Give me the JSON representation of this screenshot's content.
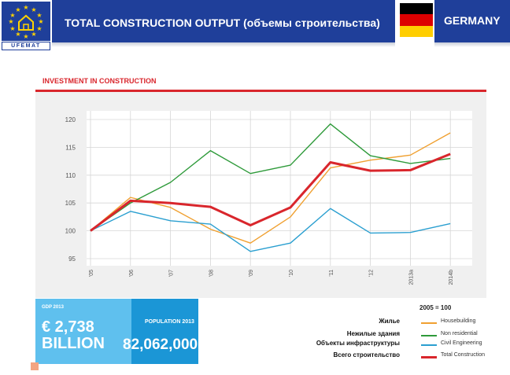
{
  "header": {
    "org_label": "UFEMAT",
    "title": "TOTAL CONSTRUCTION OUTPUT (объемы строительства)",
    "country": "GERMANY"
  },
  "colors": {
    "brand_blue": "#1f3f9a",
    "accent_red": "#d9262c",
    "de_black": "#000000",
    "de_red": "#dd0000",
    "de_gold": "#ffce00"
  },
  "section": {
    "title": "INVESTMENT IN CONSTRUCTION"
  },
  "chart_data": {
    "type": "line",
    "x": [
      "'05",
      "'06",
      "'07",
      "'08",
      "'09",
      "'10",
      "'11",
      "'12",
      "2013a",
      "2014b"
    ],
    "ylim": [
      95,
      120
    ],
    "yticks": [
      95,
      100,
      105,
      110,
      115,
      120
    ],
    "grid": true,
    "base_note": "2005 = 100",
    "series": [
      {
        "name": "Housebuilding",
        "name_ru": "Жилье",
        "color": "#f0a030",
        "width": 1.4,
        "values": [
          100,
          106,
          104.2,
          100.3,
          97.8,
          102.5,
          111.3,
          112.7,
          113.6,
          117.6
        ]
      },
      {
        "name": "Non residential",
        "name_ru": "Нежилые здания",
        "color": "#2e9a3a",
        "width": 1.4,
        "values": [
          100,
          105,
          108.7,
          114.4,
          110.3,
          111.8,
          119.2,
          113.5,
          112.1,
          113
        ]
      },
      {
        "name": "Civil Engineering",
        "name_ru": "Объекты инфраструктуры",
        "color": "#2a9fd0",
        "width": 1.4,
        "values": [
          100,
          103.5,
          101.8,
          101.2,
          96.3,
          97.8,
          104,
          99.6,
          99.7,
          101.3
        ]
      },
      {
        "name": "Total Construction",
        "name_ru": "Всего строительство",
        "color": "#d9262c",
        "width": 3,
        "values": [
          100,
          105.4,
          105,
          104.3,
          101,
          104.2,
          112.3,
          110.8,
          110.9,
          113.8
        ]
      }
    ]
  },
  "stats": {
    "gdp_label": "GDP 2013",
    "gdp_value_line1": "€ 2,738",
    "gdp_value_line2": "BILLION",
    "population_label": "POPULATION 2013",
    "population_value": "82,062,000"
  }
}
